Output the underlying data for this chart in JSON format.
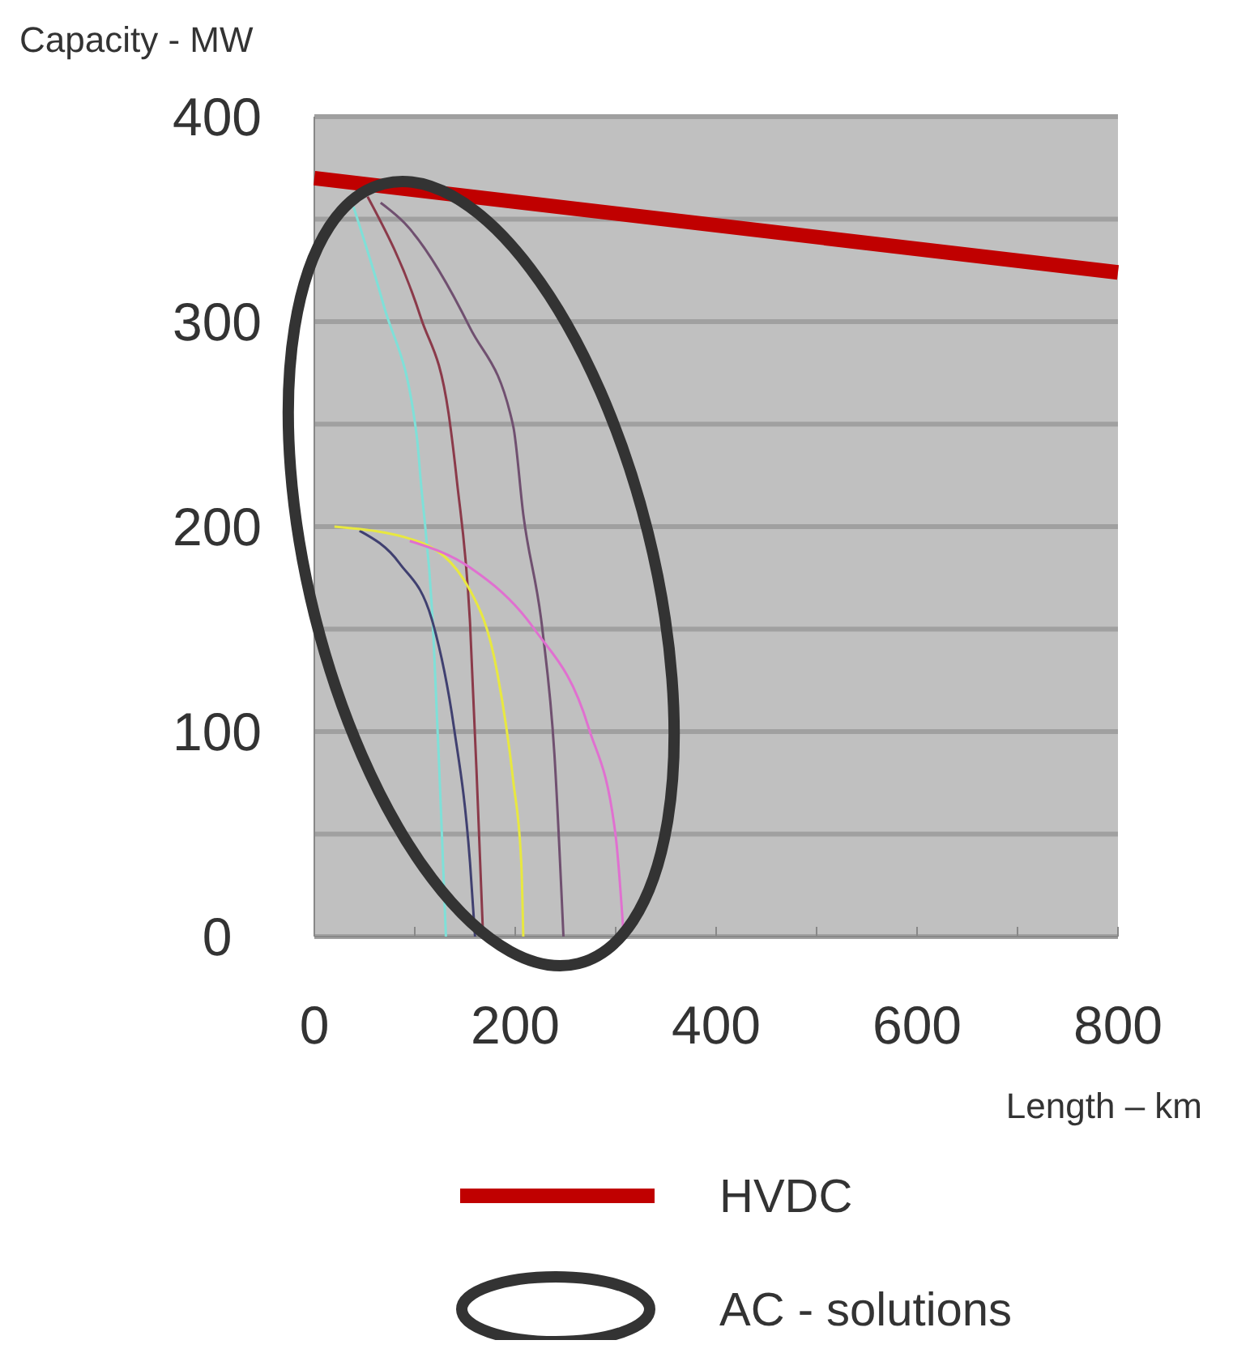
{
  "chart_data": {
    "type": "line",
    "xlabel": "Length – km",
    "ylabel": "Capacity - MW",
    "xlim": [
      0,
      800
    ],
    "ylim": [
      0,
      400
    ],
    "xticks": [
      0,
      {
        "value": 100,
        "label": null
      },
      200,
      {
        "value": 300,
        "label": null
      },
      400,
      {
        "value": 500,
        "label": null
      },
      600,
      {
        "value": 700,
        "label": null
      },
      800
    ],
    "yticks": [
      0,
      {
        "value": 50,
        "label": null
      },
      100,
      {
        "value": 150,
        "label": null
      },
      200,
      {
        "value": 250,
        "label": null
      },
      300,
      {
        "value": 350,
        "label": null
      },
      400
    ],
    "grid": "y",
    "legend": "bottom",
    "marker": "none",
    "line_style": "solid",
    "annotations": [
      "AC - solutions"
    ],
    "series": [
      {
        "name": "HVDC",
        "color": "#c00000",
        "x": [
          0,
          800
        ],
        "values": [
          370,
          324
        ]
      },
      {
        "color": "#7fe0d8",
        "x": [
          39,
          69,
          102,
          106,
          118,
          126,
          131
        ],
        "values": [
          356,
          308,
          244,
          222,
          153,
          62,
          0
        ]
      },
      {
        "color": "#8b3a4a",
        "x": [
          53,
          106,
          134,
          142,
          155,
          163,
          168
        ],
        "values": [
          361,
          302,
          254,
          222,
          153,
          62,
          0
        ]
      },
      {
        "color": "#404070",
        "x": [
          45,
          85,
          118,
          139,
          155,
          160
        ],
        "values": [
          198,
          182,
          153,
          102,
          36,
          0
        ]
      },
      {
        "color": "#705070",
        "x": [
          66,
          90,
          155,
          198,
          208,
          227,
          239,
          248
        ],
        "values": [
          358,
          348,
          297,
          249,
          206,
          150,
          89,
          0
        ]
      },
      {
        "color": "#e8e840",
        "x": [
          20,
          102,
          155,
          182,
          198,
          206,
          208
        ],
        "values": [
          200,
          193,
          169,
          129,
          76,
          36,
          0
        ]
      },
      {
        "color": "#e070d0",
        "x": [
          95,
          155,
          219,
          273,
          300,
          308
        ],
        "values": [
          193,
          180,
          150,
          102,
          49,
          0
        ]
      }
    ]
  }
}
